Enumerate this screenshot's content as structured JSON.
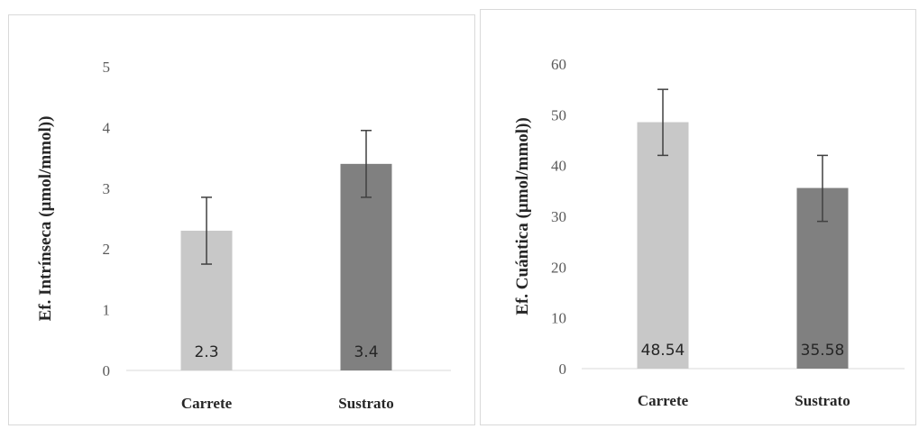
{
  "chart_data": [
    {
      "type": "bar",
      "categories": [
        "Carrete",
        "Sustrato"
      ],
      "values": [
        2.3,
        3.4
      ],
      "data_labels": [
        "2.3",
        "3.4"
      ],
      "error_bars": [
        {
          "low": 1.75,
          "high": 2.85
        },
        {
          "low": 2.85,
          "high": 3.95
        }
      ],
      "ylabel": "Ef. Intrínseca (µmol/mmol))",
      "ylim": [
        0,
        5
      ],
      "yticks": [
        "0",
        "1",
        "2",
        "3",
        "4",
        "5"
      ],
      "bar_colors": [
        "#c8c8c8",
        "#808080"
      ],
      "grid": false
    },
    {
      "type": "bar",
      "categories": [
        "Carrete",
        "Sustrato"
      ],
      "values": [
        48.54,
        35.58
      ],
      "data_labels": [
        "48.54",
        "35.58"
      ],
      "error_bars": [
        {
          "low": 42.0,
          "high": 55.0
        },
        {
          "low": 29.0,
          "high": 42.0
        }
      ],
      "ylabel": "Ef. Cuántica (µmol/mmol))",
      "ylim": [
        0,
        60
      ],
      "yticks": [
        "0",
        "10",
        "20",
        "30",
        "40",
        "50",
        "60"
      ],
      "bar_colors": [
        "#c8c8c8",
        "#808080"
      ],
      "grid": false
    }
  ]
}
